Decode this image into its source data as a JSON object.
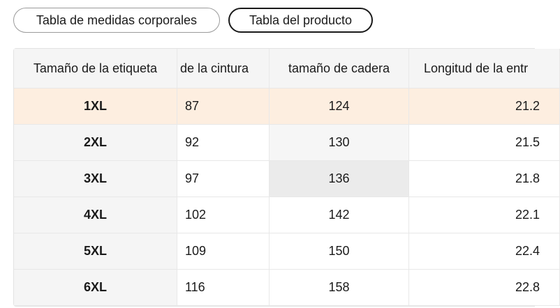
{
  "tabs": [
    "Tabla de medidas corporales",
    "Tabla del producto"
  ],
  "table": {
    "header": [
      "Tamaño de la etiqueta",
      "de la cintura",
      "tamaño de cadera",
      "Longitud de la entr"
    ],
    "rows": [
      [
        "1XL",
        "87",
        "124",
        "21.2"
      ],
      [
        "2XL",
        "92",
        "130",
        "21.5"
      ],
      [
        "3XL",
        "97",
        "136",
        "21.8"
      ],
      [
        "4XL",
        "102",
        "142",
        "22.1"
      ],
      [
        "5XL",
        "109",
        "150",
        "22.4"
      ],
      [
        "6XL",
        "116",
        "158",
        "22.8"
      ]
    ]
  }
}
